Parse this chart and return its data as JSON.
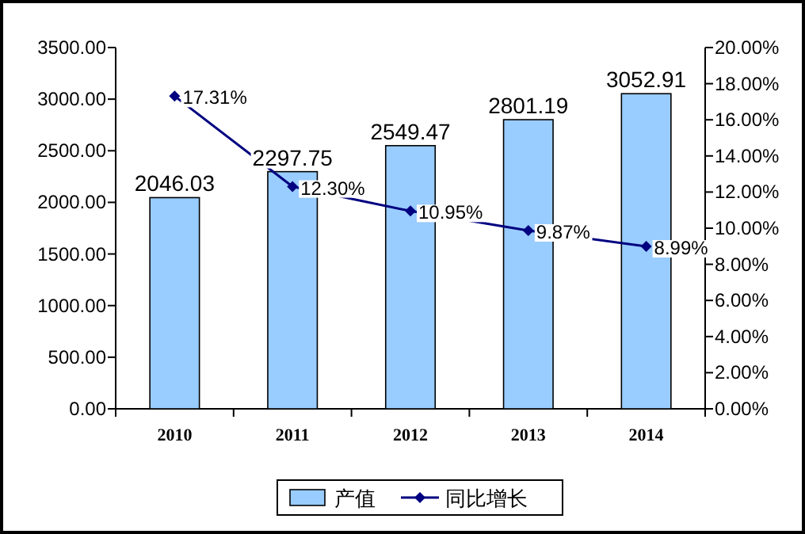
{
  "chart_data": {
    "type": "bar",
    "categories": [
      "2010",
      "2011",
      "2012",
      "2013",
      "2014"
    ],
    "series": [
      {
        "name": "产值",
        "color": "#99ccff",
        "values": [
          2046.03,
          2297.75,
          2549.47,
          2801.19,
          3052.91
        ],
        "value_labels": [
          "2046.03",
          "2297.75",
          "2549.47",
          "2801.19",
          "3052.91"
        ]
      },
      {
        "name": "同比增长",
        "type": "line",
        "axis": "y2",
        "color": "#000080",
        "values": [
          17.31,
          12.3,
          10.95,
          9.87,
          8.99
        ],
        "value_labels": [
          "17.31%",
          "12.30%",
          "10.95%",
          "9.87%",
          "8.99%"
        ]
      }
    ],
    "ylim": [
      0,
      3500
    ],
    "yticks": [
      {
        "value": 0,
        "label": "0.00"
      },
      {
        "value": 500,
        "label": "500.00"
      },
      {
        "value": 1000,
        "label": "1000.00"
      },
      {
        "value": 1500,
        "label": "1500.00"
      },
      {
        "value": 2000,
        "label": "2000.00"
      },
      {
        "value": 2500,
        "label": "2500.00"
      },
      {
        "value": 3000,
        "label": "3000.00"
      },
      {
        "value": 3500,
        "label": "3500.00"
      }
    ],
    "y2lim": [
      0,
      20
    ],
    "y2ticks": [
      {
        "value": 0,
        "label": "0.00%"
      },
      {
        "value": 2,
        "label": "2.00%"
      },
      {
        "value": 4,
        "label": "4.00%"
      },
      {
        "value": 6,
        "label": "6.00%"
      },
      {
        "value": 8,
        "label": "8.00%"
      },
      {
        "value": 10,
        "label": "10.00%"
      },
      {
        "value": 12,
        "label": "12.00%"
      },
      {
        "value": 14,
        "label": "14.00%"
      },
      {
        "value": 16,
        "label": "16.00%"
      },
      {
        "value": 18,
        "label": "18.00%"
      },
      {
        "value": 20,
        "label": "20.00%"
      }
    ],
    "marker": "diamond",
    "legend": "bottom",
    "grid": false
  }
}
